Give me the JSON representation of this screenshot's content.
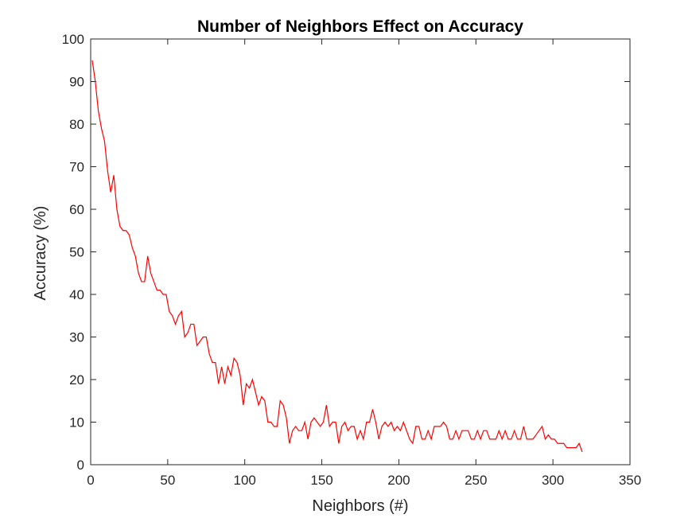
{
  "chart_data": {
    "type": "line",
    "title": "Number of Neighbors Effect on Accuracy",
    "xlabel": "Neighbors (#)",
    "ylabel": "Accuracy (%)",
    "xlim": [
      0,
      350
    ],
    "ylim": [
      0,
      100
    ],
    "xticks": [
      0,
      50,
      100,
      150,
      200,
      250,
      300,
      350
    ],
    "yticks": [
      0,
      10,
      20,
      30,
      40,
      50,
      60,
      70,
      80,
      90,
      100
    ],
    "grid": false,
    "line_color": "#ff0000",
    "series": [
      {
        "x": [
          1,
          3,
          5,
          7,
          9,
          11,
          13,
          15,
          17,
          19,
          21,
          23,
          25,
          27,
          29,
          31,
          33,
          35,
          37,
          39,
          41,
          43,
          45,
          47,
          49,
          51,
          53,
          55,
          57,
          59,
          61,
          63,
          65,
          67,
          69,
          71,
          73,
          75,
          77,
          79,
          81,
          83,
          85,
          87,
          89,
          91,
          93,
          95,
          97,
          99,
          101,
          103,
          105,
          107,
          109,
          111,
          113,
          115,
          117,
          119,
          121,
          123,
          125,
          127,
          129,
          131,
          133,
          135,
          137,
          139,
          141,
          143,
          145,
          147,
          149,
          151,
          153,
          155,
          157,
          159,
          161,
          163,
          165,
          167,
          169,
          171,
          173,
          175,
          177,
          179,
          181,
          183,
          185,
          187,
          189,
          191,
          193,
          195,
          197,
          199,
          201,
          203,
          205,
          207,
          209,
          211,
          213,
          215,
          217,
          219,
          221,
          223,
          225,
          227,
          229,
          231,
          233,
          235,
          237,
          239,
          241,
          243,
          245,
          247,
          249,
          251,
          253,
          255,
          257,
          259,
          261,
          263,
          265,
          267,
          269,
          271,
          273,
          275,
          277,
          279,
          281,
          283,
          285,
          287,
          289,
          291,
          293,
          295,
          297,
          299,
          301,
          303,
          305,
          307,
          309,
          311,
          313,
          315,
          317,
          319
        ],
        "values": [
          95,
          90,
          83,
          79,
          76,
          69,
          64,
          68,
          60,
          56,
          55,
          55,
          54,
          51,
          49,
          45,
          43,
          43,
          49,
          45,
          43,
          41,
          41,
          40,
          40,
          36,
          35,
          33,
          35,
          36,
          30,
          31,
          33,
          33,
          28,
          29,
          30,
          30,
          26,
          24,
          24,
          19,
          23,
          19,
          23,
          21,
          25,
          24,
          21,
          14,
          19,
          18,
          20,
          17,
          14,
          16,
          15,
          10,
          10,
          9,
          9,
          15,
          14,
          11,
          5,
          8,
          9,
          8,
          8,
          10,
          6,
          10,
          11,
          10,
          9,
          10,
          14,
          9,
          10,
          10,
          5,
          9,
          10,
          8,
          9,
          9,
          6,
          8,
          6,
          10,
          10,
          13,
          10,
          6,
          9,
          10,
          9,
          10,
          8,
          9,
          8,
          10,
          8,
          6,
          5,
          9,
          9,
          6,
          6,
          8,
          6,
          9,
          9,
          9,
          10,
          9,
          6,
          6,
          8,
          6,
          8,
          8,
          8,
          6,
          6,
          8,
          6,
          8,
          8,
          6,
          6,
          6,
          8,
          6,
          8,
          6,
          6,
          8,
          6,
          6,
          9,
          6,
          6,
          6,
          7,
          8,
          9,
          6,
          7,
          6,
          6,
          5,
          5,
          5,
          4,
          4,
          4,
          4,
          5,
          3
        ]
      }
    ]
  }
}
